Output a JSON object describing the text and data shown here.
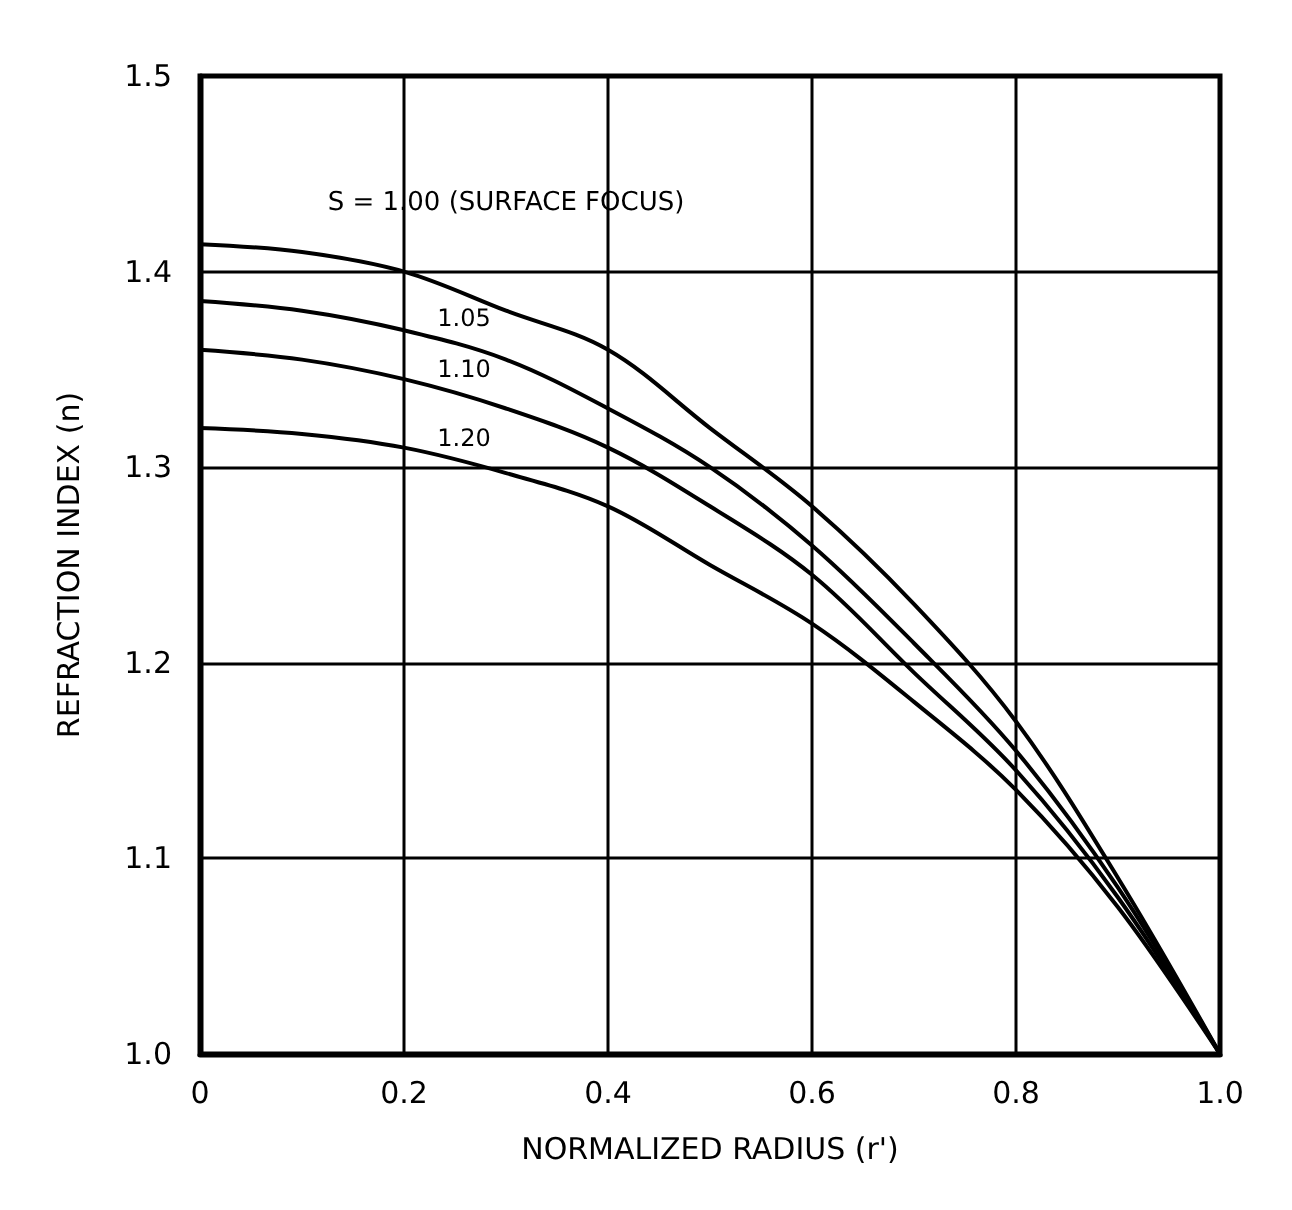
{
  "chart_data": {
    "type": "line",
    "xlabel": "NORMALIZED RADIUS (r')",
    "ylabel": "REFRACTION INDEX (n)",
    "x": [
      0,
      0.1,
      0.2,
      0.3,
      0.4,
      0.5,
      0.6,
      0.7,
      0.8,
      0.9,
      1.0
    ],
    "series": [
      {
        "name": "S = 1.00 (SURFACE FOCUS)",
        "color": "#000000",
        "values": [
          1.414,
          1.41,
          1.4,
          1.38,
          1.36,
          1.32,
          1.28,
          1.23,
          1.17,
          1.09,
          1.0
        ]
      },
      {
        "name": "1.05",
        "color": "#000000",
        "values": [
          1.385,
          1.38,
          1.37,
          1.355,
          1.33,
          1.3,
          1.26,
          1.21,
          1.155,
          1.085,
          1.0
        ]
      },
      {
        "name": "1.10",
        "color": "#000000",
        "values": [
          1.36,
          1.355,
          1.345,
          1.33,
          1.31,
          1.28,
          1.245,
          1.195,
          1.145,
          1.08,
          1.0
        ]
      },
      {
        "name": "1.20",
        "color": "#000000",
        "values": [
          1.32,
          1.317,
          1.31,
          1.297,
          1.28,
          1.25,
          1.22,
          1.18,
          1.135,
          1.075,
          1.0
        ]
      }
    ],
    "xlim": [
      0,
      1.0
    ],
    "xticks": [
      {
        "value": 0,
        "label": "0"
      },
      0.2,
      0.4,
      0.6,
      0.8,
      {
        "value": 1.0,
        "label": "1.0"
      }
    ],
    "ylim": [
      1.0,
      1.5
    ],
    "yticks": [
      {
        "value": 1.0,
        "label": "1.0"
      },
      1.1,
      1.2,
      1.3,
      1.4,
      {
        "value": 1.5,
        "label": "1.5"
      }
    ],
    "grid": true,
    "marker": "none",
    "line_style": "solid",
    "legend": false
  }
}
